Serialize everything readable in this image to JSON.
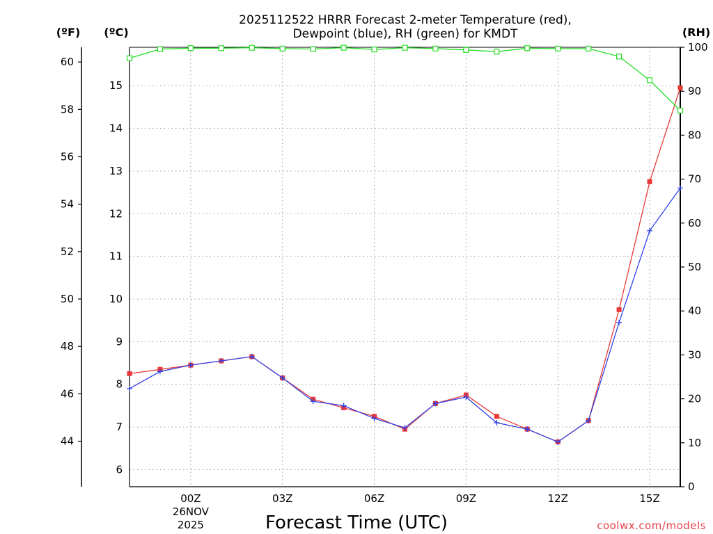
{
  "chart_data": {
    "type": "line",
    "title_line1": "2025112522 HRRR Forecast 2-meter Temperature (red),",
    "title_line2": "Dewpoint (blue), RH (green) for KMDT",
    "xlabel": "Forecast Time (UTC)",
    "credit": "coolwx.com/models",
    "unit_f": "(ºF)",
    "unit_c": "(ºC)",
    "unit_rh": "(RH)",
    "x": [
      22,
      23,
      24,
      25,
      26,
      27,
      28,
      29,
      30,
      31,
      32,
      33,
      34,
      35,
      36,
      37,
      38,
      39,
      40
    ],
    "xlim": [
      22,
      40
    ],
    "x_ticks": [
      {
        "x": 24,
        "label": "00Z",
        "label2": "26NOV",
        "label3": "2025"
      },
      {
        "x": 27,
        "label": "03Z"
      },
      {
        "x": 30,
        "label": "06Z"
      },
      {
        "x": 33,
        "label": "09Z"
      },
      {
        "x": 36,
        "label": "12Z"
      },
      {
        "x": 39,
        "label": "15Z"
      }
    ],
    "ylim_c": [
      5.6,
      15.9
    ],
    "y_ticks_c": [
      6,
      7,
      8,
      9,
      10,
      11,
      12,
      13,
      14,
      15
    ],
    "y_ticks_f": [
      44,
      46,
      48,
      50,
      52,
      54,
      56,
      58,
      60
    ],
    "ylim_rh": [
      0,
      100
    ],
    "y_ticks_rh": [
      0,
      10,
      20,
      30,
      40,
      50,
      60,
      70,
      80,
      90,
      100
    ],
    "series": [
      {
        "name": "Temperature",
        "color": "#e83838",
        "marker": "square-filled",
        "axis": "c",
        "values": [
          8.25,
          8.35,
          8.45,
          8.55,
          8.65,
          8.15,
          7.65,
          7.45,
          7.25,
          6.95,
          7.55,
          7.75,
          7.25,
          6.95,
          6.65,
          7.15,
          9.75,
          12.75,
          14.95
        ]
      },
      {
        "name": "Dewpoint",
        "color": "#3040e8",
        "marker": "plus",
        "axis": "c",
        "values": [
          7.9,
          8.3,
          8.45,
          8.55,
          8.65,
          8.15,
          7.6,
          7.5,
          7.2,
          6.98,
          7.55,
          7.7,
          7.1,
          6.95,
          6.65,
          7.15,
          9.45,
          11.6,
          12.6
        ]
      },
      {
        "name": "RH",
        "color": "#22dd22",
        "marker": "square-open",
        "axis": "rh",
        "values": [
          97.5,
          99.6,
          99.8,
          99.8,
          99.9,
          99.7,
          99.6,
          99.9,
          99.5,
          99.9,
          99.7,
          99.4,
          99.0,
          99.8,
          99.7,
          99.7,
          97.9,
          92.5,
          85.6
        ]
      }
    ]
  }
}
